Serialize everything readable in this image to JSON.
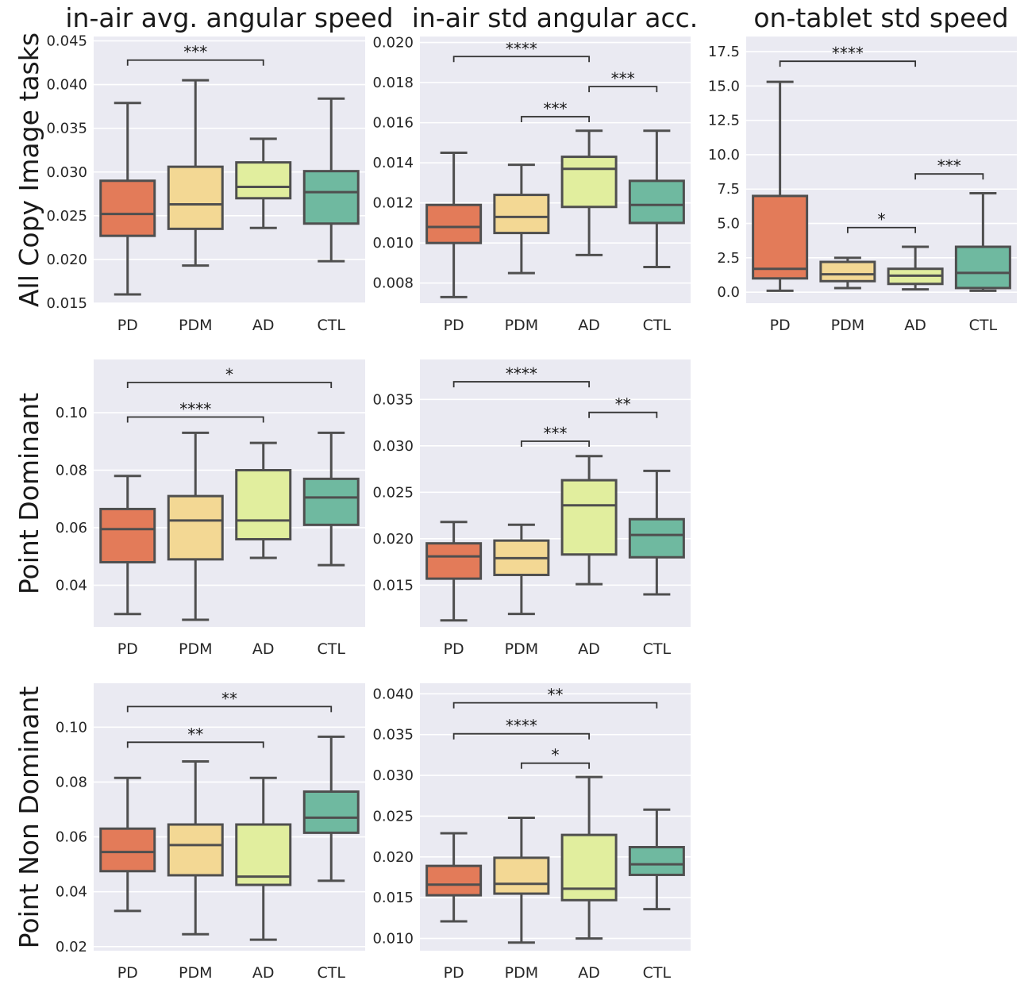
{
  "chart_data": {
    "type": "box",
    "categories": [
      "PD",
      "PDM",
      "AD",
      "CTL"
    ],
    "palette": {
      "PD": "#e37b59",
      "PDM": "#f3d894",
      "AD": "#e1ee9e",
      "CTL": "#6fb9a0"
    },
    "column_titles": [
      "in-air avg. angular speed",
      "in-air std angular acc.",
      "on-tablet std speed"
    ],
    "row_labels": [
      "All Copy Image tasks",
      "Point Dominant",
      "Point Non Dominant"
    ],
    "panels": [
      {
        "id": "copy-airspeed",
        "row": 0,
        "col": 0,
        "ylim": [
          0.015,
          0.0455
        ],
        "yticks": [
          0.015,
          0.02,
          0.025,
          0.03,
          0.035,
          0.04,
          0.045
        ],
        "ytick_labels": [
          "0.015",
          "0.020",
          "0.025",
          "0.030",
          "0.035",
          "0.040",
          "0.045"
        ],
        "boxes": [
          {
            "min": 0.016,
            "q1": 0.0227,
            "median": 0.0252,
            "q3": 0.029,
            "max": 0.0379
          },
          {
            "min": 0.0193,
            "q1": 0.0235,
            "median": 0.0263,
            "q3": 0.0306,
            "max": 0.0405
          },
          {
            "min": 0.0236,
            "q1": 0.027,
            "median": 0.0283,
            "q3": 0.0311,
            "max": 0.0338
          },
          {
            "min": 0.0198,
            "q1": 0.0241,
            "median": 0.0277,
            "q3": 0.0301,
            "max": 0.0384
          }
        ],
        "significance": [
          {
            "from": 0,
            "to": 2,
            "y": 0.0428,
            "label": "***"
          }
        ]
      },
      {
        "id": "copy-airacc",
        "row": 0,
        "col": 1,
        "ylim": [
          0.007,
          0.0203
        ],
        "yticks": [
          0.008,
          0.01,
          0.012,
          0.014,
          0.016,
          0.018,
          0.02
        ],
        "ytick_labels": [
          "0.008",
          "0.010",
          "0.012",
          "0.014",
          "0.016",
          "0.018",
          "0.020"
        ],
        "boxes": [
          {
            "min": 0.0073,
            "q1": 0.01,
            "median": 0.0108,
            "q3": 0.0119,
            "max": 0.0145
          },
          {
            "min": 0.0085,
            "q1": 0.0105,
            "median": 0.0113,
            "q3": 0.0124,
            "max": 0.0139
          },
          {
            "min": 0.0094,
            "q1": 0.0118,
            "median": 0.0137,
            "q3": 0.0143,
            "max": 0.0156
          },
          {
            "min": 0.0088,
            "q1": 0.011,
            "median": 0.0119,
            "q3": 0.0131,
            "max": 0.0156
          }
        ],
        "significance": [
          {
            "from": 0,
            "to": 2,
            "y": 0.0193,
            "label": "****"
          },
          {
            "from": 2,
            "to": 3,
            "y": 0.0178,
            "label": "***"
          },
          {
            "from": 1,
            "to": 2,
            "y": 0.0163,
            "label": "***"
          }
        ]
      },
      {
        "id": "copy-tabspeed",
        "row": 0,
        "col": 2,
        "ylim": [
          -0.8,
          18.6
        ],
        "yticks": [
          0.0,
          2.5,
          5.0,
          7.5,
          10.0,
          12.5,
          15.0,
          17.5
        ],
        "ytick_labels": [
          "0.0",
          "2.5",
          "5.0",
          "7.5",
          "10.0",
          "12.5",
          "15.0",
          "17.5"
        ],
        "boxes": [
          {
            "min": 0.1,
            "q1": 1.0,
            "median": 1.7,
            "q3": 7.0,
            "max": 15.3
          },
          {
            "min": 0.3,
            "q1": 0.8,
            "median": 1.3,
            "q3": 2.2,
            "max": 2.5
          },
          {
            "min": 0.2,
            "q1": 0.6,
            "median": 1.2,
            "q3": 1.7,
            "max": 3.3
          },
          {
            "min": 0.1,
            "q1": 0.3,
            "median": 1.4,
            "q3": 3.3,
            "max": 7.2
          }
        ],
        "significance": [
          {
            "from": 0,
            "to": 2,
            "y": 16.8,
            "label": "****"
          },
          {
            "from": 2,
            "to": 3,
            "y": 8.6,
            "label": "***"
          },
          {
            "from": 1,
            "to": 2,
            "y": 4.7,
            "label": "*"
          }
        ]
      },
      {
        "id": "dom-airspeed",
        "row": 1,
        "col": 0,
        "ylim": [
          0.0255,
          0.1185
        ],
        "yticks": [
          0.04,
          0.06,
          0.08,
          0.1
        ],
        "ytick_labels": [
          "0.04",
          "0.06",
          "0.08",
          "0.10"
        ],
        "boxes": [
          {
            "min": 0.03,
            "q1": 0.048,
            "median": 0.0595,
            "q3": 0.0665,
            "max": 0.078
          },
          {
            "min": 0.028,
            "q1": 0.049,
            "median": 0.0625,
            "q3": 0.071,
            "max": 0.093
          },
          {
            "min": 0.0495,
            "q1": 0.056,
            "median": 0.0625,
            "q3": 0.08,
            "max": 0.0895
          },
          {
            "min": 0.047,
            "q1": 0.061,
            "median": 0.0705,
            "q3": 0.077,
            "max": 0.093
          }
        ],
        "significance": [
          {
            "from": 0,
            "to": 3,
            "y": 0.1105,
            "label": "*"
          },
          {
            "from": 0,
            "to": 2,
            "y": 0.0985,
            "label": "****"
          }
        ]
      },
      {
        "id": "dom-airacc",
        "row": 1,
        "col": 1,
        "ylim": [
          0.0105,
          0.0393
        ],
        "yticks": [
          0.015,
          0.02,
          0.025,
          0.03,
          0.035
        ],
        "ytick_labels": [
          "0.015",
          "0.020",
          "0.025",
          "0.030",
          "0.035"
        ],
        "boxes": [
          {
            "min": 0.0112,
            "q1": 0.0157,
            "median": 0.0181,
            "q3": 0.0195,
            "max": 0.0218
          },
          {
            "min": 0.0119,
            "q1": 0.0161,
            "median": 0.0179,
            "q3": 0.0198,
            "max": 0.0215
          },
          {
            "min": 0.0151,
            "q1": 0.0183,
            "median": 0.0236,
            "q3": 0.0263,
            "max": 0.0289
          },
          {
            "min": 0.014,
            "q1": 0.018,
            "median": 0.0204,
            "q3": 0.0221,
            "max": 0.0273
          }
        ],
        "significance": [
          {
            "from": 0,
            "to": 2,
            "y": 0.0369,
            "label": "****"
          },
          {
            "from": 2,
            "to": 3,
            "y": 0.0336,
            "label": "**"
          },
          {
            "from": 1,
            "to": 2,
            "y": 0.0305,
            "label": "***"
          }
        ]
      },
      {
        "id": "nondom-airspeed",
        "row": 2,
        "col": 0,
        "ylim": [
          0.0185,
          0.116
        ],
        "yticks": [
          0.02,
          0.04,
          0.06,
          0.08,
          0.1
        ],
        "ytick_labels": [
          "0.02",
          "0.04",
          "0.06",
          "0.08",
          "0.10"
        ],
        "boxes": [
          {
            "min": 0.033,
            "q1": 0.0475,
            "median": 0.0545,
            "q3": 0.063,
            "max": 0.0815
          },
          {
            "min": 0.0245,
            "q1": 0.046,
            "median": 0.057,
            "q3": 0.0645,
            "max": 0.0875
          },
          {
            "min": 0.0225,
            "q1": 0.0425,
            "median": 0.0455,
            "q3": 0.0645,
            "max": 0.0815
          },
          {
            "min": 0.044,
            "q1": 0.0615,
            "median": 0.067,
            "q3": 0.0765,
            "max": 0.0965
          }
        ],
        "significance": [
          {
            "from": 0,
            "to": 3,
            "y": 0.1075,
            "label": "**"
          },
          {
            "from": 0,
            "to": 2,
            "y": 0.0945,
            "label": "**"
          }
        ]
      },
      {
        "id": "nondom-airacc",
        "row": 2,
        "col": 1,
        "ylim": [
          0.0085,
          0.0413
        ],
        "yticks": [
          0.01,
          0.015,
          0.02,
          0.025,
          0.03,
          0.035,
          0.04
        ],
        "ytick_labels": [
          "0.010",
          "0.015",
          "0.020",
          "0.025",
          "0.030",
          "0.035",
          "0.040"
        ],
        "boxes": [
          {
            "min": 0.0121,
            "q1": 0.0153,
            "median": 0.0166,
            "q3": 0.0189,
            "max": 0.0229
          },
          {
            "min": 0.0095,
            "q1": 0.0155,
            "median": 0.0167,
            "q3": 0.0199,
            "max": 0.0248
          },
          {
            "min": 0.01,
            "q1": 0.0147,
            "median": 0.0161,
            "q3": 0.0227,
            "max": 0.0298
          },
          {
            "min": 0.0136,
            "q1": 0.0178,
            "median": 0.0191,
            "q3": 0.0212,
            "max": 0.0258
          }
        ],
        "significance": [
          {
            "from": 0,
            "to": 3,
            "y": 0.0389,
            "label": "**"
          },
          {
            "from": 0,
            "to": 2,
            "y": 0.0351,
            "label": "****"
          },
          {
            "from": 1,
            "to": 2,
            "y": 0.0315,
            "label": "*"
          }
        ]
      }
    ]
  }
}
